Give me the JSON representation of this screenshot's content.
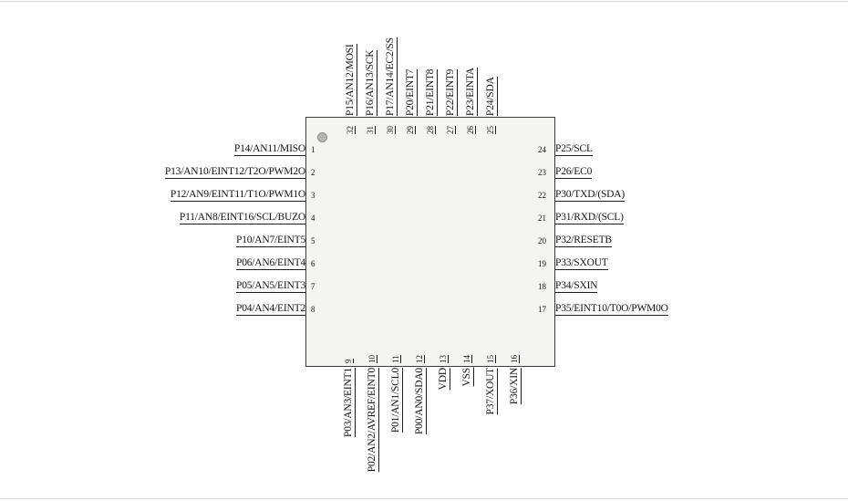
{
  "diagram": {
    "type": "ic-pinout",
    "package_pin_count": 32,
    "chip_fill_color": "#f4f4f1",
    "chip_border_color": "#3c3c3c",
    "pin1_marker": "gray-dot-top-left",
    "pins": {
      "left": [
        {
          "num": "1",
          "label": "P14/AN11/MISO"
        },
        {
          "num": "2",
          "label": "P13/AN10/EINT12/T2O/PWM2O"
        },
        {
          "num": "3",
          "label": "P12/AN9/EINT11/T1O/PWM1O"
        },
        {
          "num": "4",
          "label": "P11/AN8/EINT16/SCL/BUZO"
        },
        {
          "num": "5",
          "label": "P10/AN7/EINT5"
        },
        {
          "num": "6",
          "label": "P06/AN6/EINT4"
        },
        {
          "num": "7",
          "label": "P05/AN5/EINT3"
        },
        {
          "num": "8",
          "label": "P04/AN4/EINT2"
        }
      ],
      "bottom": [
        {
          "num": "9",
          "label": "P03/AN3/EINT1"
        },
        {
          "num": "10",
          "label": "P02/AN2/AVREF/EINT0"
        },
        {
          "num": "11",
          "label": "P01/AN1/SCL0"
        },
        {
          "num": "12",
          "label": "P00/AN0/SDA0"
        },
        {
          "num": "13",
          "label": "VDD"
        },
        {
          "num": "14",
          "label": "VSS"
        },
        {
          "num": "15",
          "label": "P37/XOUT"
        },
        {
          "num": "16",
          "label": "P36/XIN"
        }
      ],
      "right": [
        {
          "num": "24",
          "label": "P25/SCL"
        },
        {
          "num": "23",
          "label": "P26/EC0"
        },
        {
          "num": "22",
          "label": "P30/TXD/(SDA)"
        },
        {
          "num": "21",
          "label": "P31/RXD/(SCL)"
        },
        {
          "num": "20",
          "label": "P32/RESETB"
        },
        {
          "num": "19",
          "label": "P33/SXOUT"
        },
        {
          "num": "18",
          "label": "P34/SXIN"
        },
        {
          "num": "17",
          "label": "P35/EINT10/T0O/PWM0O"
        }
      ],
      "top": [
        {
          "num": "32",
          "label": "P15/AN12/MOSI"
        },
        {
          "num": "31",
          "label": "P16/AN13/SCK"
        },
        {
          "num": "30",
          "label": "P17/AN14/EC2/SS"
        },
        {
          "num": "29",
          "label": "P20/EINT7"
        },
        {
          "num": "28",
          "label": "P21/EINT8"
        },
        {
          "num": "27",
          "label": "P22/EINT9"
        },
        {
          "num": "26",
          "label": "P23/EINTA"
        },
        {
          "num": "25",
          "label": "P24/SDA"
        }
      ]
    }
  }
}
